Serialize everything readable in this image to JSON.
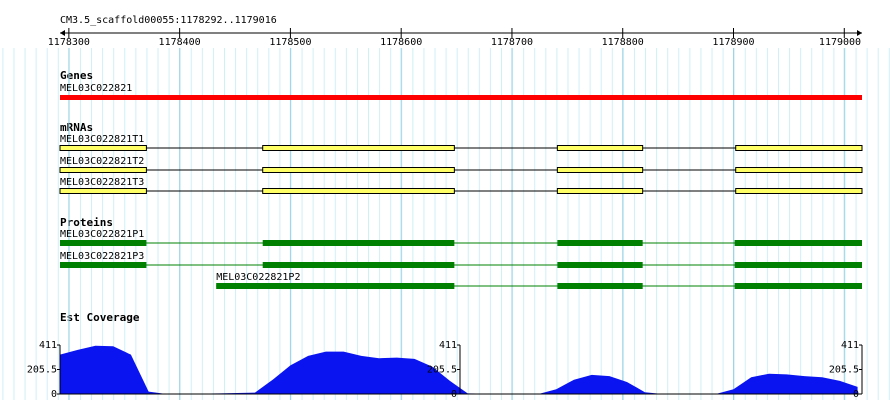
{
  "ruler": {
    "title": "CM3.5_scaffold00055:1178292..1179016",
    "xlim": [
      1178292,
      1179016
    ],
    "xticks": [
      1178300,
      1178400,
      1178500,
      1178600,
      1178700,
      1178800,
      1178900,
      1179000
    ]
  },
  "tracks": {
    "genes": {
      "label": "Genes",
      "color": "#ff0000",
      "features": [
        {
          "name": "MEL03C022821",
          "start": 1178292,
          "end": 1179016
        }
      ]
    },
    "mrnas": {
      "label": "mRNAs",
      "color": "#ffff66",
      "features": [
        {
          "name": "MEL03C022821T1",
          "exons": [
            [
              1178292,
              1178370
            ],
            [
              1178475,
              1178648
            ],
            [
              1178741,
              1178818
            ],
            [
              1178902,
              1179016
            ]
          ]
        },
        {
          "name": "MEL03C022821T2",
          "exons": [
            [
              1178292,
              1178370
            ],
            [
              1178475,
              1178648
            ],
            [
              1178741,
              1178818
            ],
            [
              1178902,
              1179016
            ]
          ]
        },
        {
          "name": "MEL03C022821T3",
          "exons": [
            [
              1178292,
              1178370
            ],
            [
              1178475,
              1178648
            ],
            [
              1178741,
              1178818
            ],
            [
              1178902,
              1179016
            ]
          ]
        }
      ]
    },
    "proteins": {
      "label": "Proteins",
      "color": "#008000",
      "features": [
        {
          "name": "MEL03C022821P1",
          "exons": [
            [
              1178292,
              1178370
            ],
            [
              1178475,
              1178648
            ],
            [
              1178741,
              1178818
            ],
            [
              1178901,
              1179016
            ]
          ]
        },
        {
          "name": "MEL03C022821P3",
          "exons": [
            [
              1178292,
              1178370
            ],
            [
              1178475,
              1178648
            ],
            [
              1178741,
              1178818
            ],
            [
              1178901,
              1179016
            ]
          ]
        },
        {
          "name": "MEL03C022821P2",
          "exons": [
            [
              1178433,
              1178648
            ],
            [
              1178741,
              1178818
            ],
            [
              1178901,
              1179016
            ]
          ]
        }
      ]
    },
    "est": {
      "label": "Est Coverage",
      "color": "#0a14f0",
      "ylim": [
        0,
        411
      ],
      "yticks": [
        0,
        205.5,
        411
      ],
      "x": [
        1178292,
        1178308,
        1178324,
        1178340,
        1178356,
        1178372,
        1178388,
        1178404,
        1178420,
        1178436,
        1178452,
        1178468,
        1178484,
        1178500,
        1178516,
        1178532,
        1178548,
        1178564,
        1178580,
        1178596,
        1178612,
        1178628,
        1178644,
        1178660,
        1178676,
        1178692,
        1178708,
        1178724,
        1178740,
        1178756,
        1178772,
        1178788,
        1178804,
        1178820,
        1178836,
        1178852,
        1178868,
        1178884,
        1178900,
        1178916,
        1178932,
        1178948,
        1178964,
        1178980,
        1178996,
        1179012
      ],
      "values": [
        330,
        370,
        405,
        400,
        330,
        20,
        0,
        0,
        3,
        5,
        8,
        12,
        120,
        240,
        320,
        355,
        355,
        320,
        300,
        305,
        295,
        230,
        110,
        5,
        3,
        2,
        0,
        0,
        40,
        120,
        160,
        150,
        100,
        15,
        0,
        0,
        0,
        0,
        40,
        140,
        170,
        165,
        150,
        140,
        110,
        60
      ]
    }
  }
}
